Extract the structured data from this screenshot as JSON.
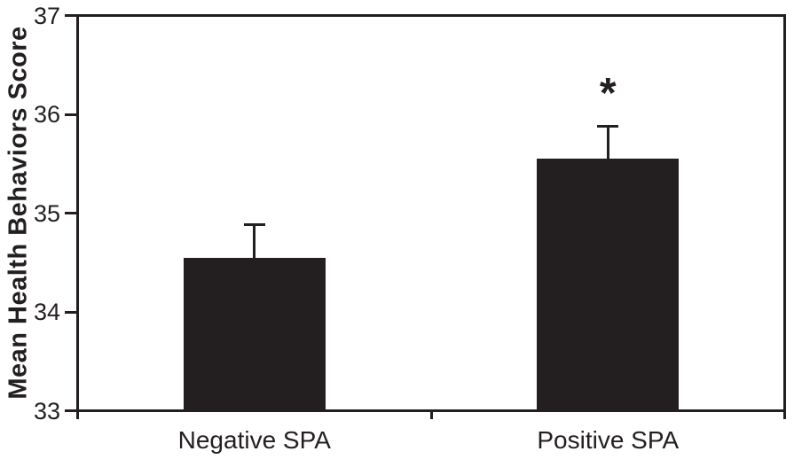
{
  "chart_data": {
    "type": "bar",
    "title": "",
    "categories": [
      "Negative SPA",
      "Positive SPA"
    ],
    "values": [
      34.55,
      35.55
    ],
    "errors": [
      0.33,
      0.33
    ],
    "error_direction": "upper",
    "significance_markers": [
      "",
      "*"
    ],
    "xlabel": "",
    "ylabel": "Mean Health Behaviors Score",
    "ylim": [
      33,
      37
    ],
    "yticks": [
      33,
      34,
      35,
      36,
      37
    ],
    "bar_color": "#231f20",
    "axis_color": "#231f20",
    "background_color": "#ffffff",
    "grid": false,
    "legend": false,
    "plot_frame": "full-box"
  }
}
